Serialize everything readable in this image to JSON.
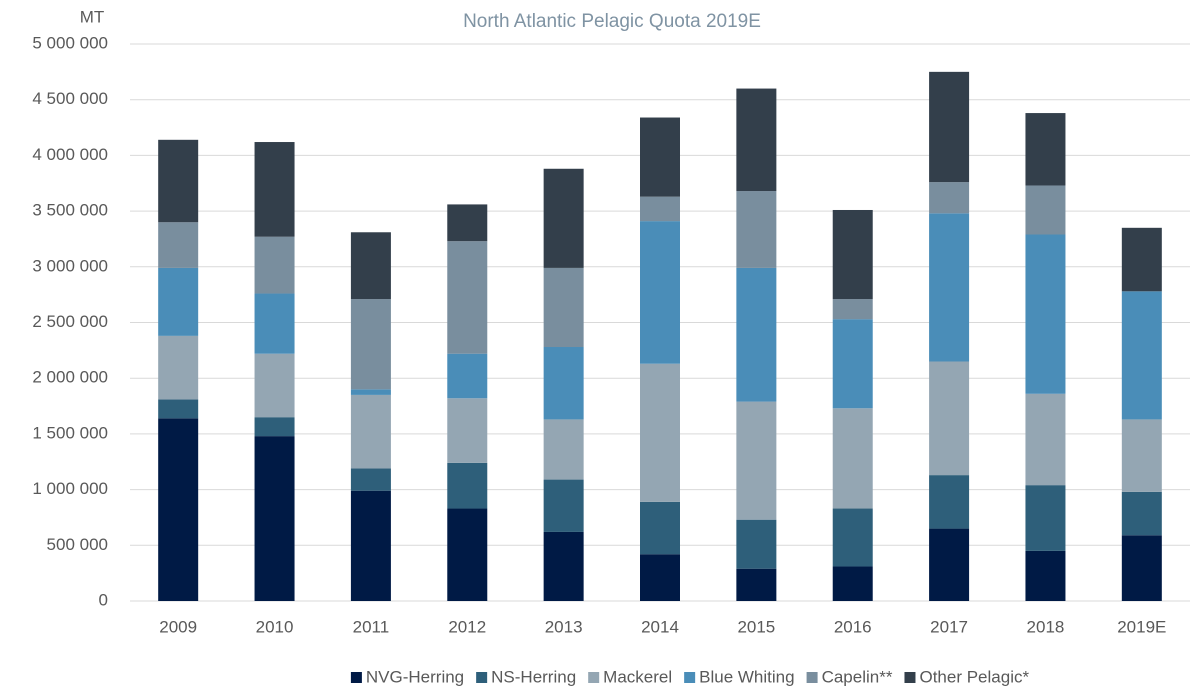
{
  "chart_data": {
    "type": "stacked_bar",
    "title": "North Atlantic Pelagic Quota 2019E",
    "y_label": "MT",
    "categories": [
      "2009",
      "2010",
      "2011",
      "2012",
      "2013",
      "2014",
      "2015",
      "2016",
      "2017",
      "2018",
      "2019E"
    ],
    "series": [
      {
        "name": "NVG-Herring",
        "color": "#001a45",
        "values": [
          1640000,
          1480000,
          990000,
          830000,
          620000,
          420000,
          290000,
          310000,
          650000,
          450000,
          590000
        ]
      },
      {
        "name": "NS-Herring",
        "color": "#2e5f7a",
        "values": [
          170000,
          170000,
          200000,
          410000,
          470000,
          470000,
          440000,
          520000,
          480000,
          590000,
          390000
        ]
      },
      {
        "name": "Mackerel",
        "color": "#94a6b3",
        "values": [
          570000,
          570000,
          660000,
          580000,
          540000,
          1240000,
          1060000,
          900000,
          1020000,
          820000,
          650000
        ]
      },
      {
        "name": "Blue Whiting",
        "color": "#4a8db8",
        "values": [
          610000,
          540000,
          50000,
          400000,
          650000,
          1280000,
          1200000,
          800000,
          1330000,
          1430000,
          1150000
        ]
      },
      {
        "name": "Capelin**",
        "color": "#798e9e",
        "values": [
          410000,
          510000,
          810000,
          1010000,
          710000,
          220000,
          690000,
          180000,
          280000,
          440000,
          0
        ]
      },
      {
        "name": "Other Pelagic*",
        "color": "#333f4b",
        "values": [
          740000,
          850000,
          600000,
          330000,
          890000,
          710000,
          920000,
          800000,
          990000,
          650000,
          570000
        ]
      }
    ],
    "ylim": [
      0,
      5000000
    ],
    "yticks": [
      0,
      {
        "value": 500000,
        "label": "500 000"
      },
      {
        "value": 1000000,
        "label": "1 000 000"
      },
      {
        "value": 1500000,
        "label": "1 500 000"
      },
      {
        "value": 2000000,
        "label": "2 000 000"
      },
      {
        "value": 2500000,
        "label": "2 500 000"
      },
      {
        "value": 3000000,
        "label": "3 000 000"
      },
      {
        "value": 3500000,
        "label": "3 500 000"
      },
      {
        "value": 4000000,
        "label": "4 000 000"
      },
      {
        "value": 4500000,
        "label": "4 500 000"
      },
      {
        "value": 5000000,
        "label": "5 000 000"
      }
    ],
    "grid": true,
    "legend": "bottom"
  }
}
